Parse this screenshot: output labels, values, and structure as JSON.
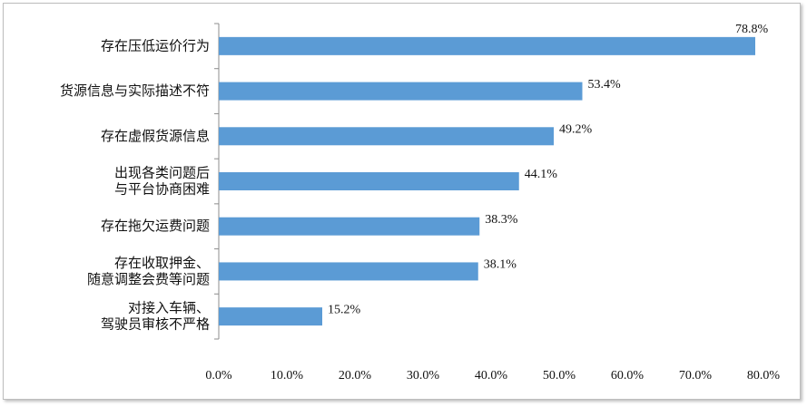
{
  "chart_data": {
    "type": "bar",
    "orientation": "horizontal",
    "categories": [
      [
        "存在压低运价行为"
      ],
      [
        "货源信息与实际描述不符"
      ],
      [
        "存在虚假货源信息"
      ],
      [
        "出现各类问题后",
        "与平台协商困难"
      ],
      [
        "存在拖欠运费问题"
      ],
      [
        "存在收取押金、",
        "随意调整会费等问题"
      ],
      [
        "对接入车辆、",
        "驾驶员审核不严格"
      ]
    ],
    "values": [
      78.8,
      53.4,
      49.2,
      44.1,
      38.3,
      38.1,
      15.2
    ],
    "data_labels": [
      "78.8%",
      "53.4%",
      "49.2%",
      "44.1%",
      "38.3%",
      "38.1%",
      "15.2%"
    ],
    "xlim": [
      0,
      80
    ],
    "x_ticks": [
      0,
      10,
      20,
      30,
      40,
      50,
      60,
      70,
      80
    ],
    "x_tick_labels": [
      "0.0%",
      "10.0%",
      "20.0%",
      "30.0%",
      "40.0%",
      "50.0%",
      "60.0%",
      "70.0%",
      "80.0%"
    ],
    "grid": false,
    "legend": "none",
    "colors": {
      "bar": "#5b9bd5",
      "axis": "#8c8c8c"
    }
  }
}
